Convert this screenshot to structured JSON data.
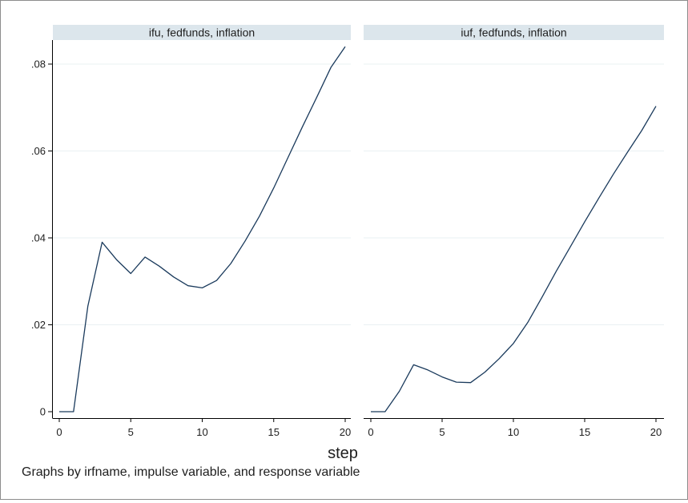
{
  "chart_data": {
    "type": "line",
    "xlabel": "step",
    "note": "Graphs by irfname, impulse variable, and response variable",
    "xlim": [
      0,
      20
    ],
    "ylim": [
      0,
      0.084
    ],
    "x_ticks": [
      0,
      5,
      10,
      15,
      20
    ],
    "x_tick_labels": [
      "0",
      "5",
      "10",
      "15",
      "20"
    ],
    "y_ticks": [
      0,
      0.02,
      0.04,
      0.06,
      0.08
    ],
    "y_tick_labels": [
      "0",
      ".02",
      ".04",
      ".06",
      ".08"
    ],
    "grid": true,
    "colors": {
      "line": "#1a3a5c",
      "strip": "#dce6ec",
      "grid": "#eaf0f3",
      "axis": "#000000"
    },
    "panels": [
      {
        "title": "ifu, fedfunds, inflation",
        "x": [
          0,
          1,
          2,
          3,
          4,
          5,
          6,
          7,
          8,
          9,
          10,
          11,
          12,
          13,
          14,
          15,
          16,
          17,
          18,
          19,
          20
        ],
        "y": [
          0,
          0,
          0.0243,
          0.039,
          0.035,
          0.0318,
          0.0356,
          0.0335,
          0.031,
          0.029,
          0.0285,
          0.0302,
          0.0341,
          0.0393,
          0.045,
          0.0515,
          0.0585,
          0.0655,
          0.0723,
          0.0792,
          0.084
        ]
      },
      {
        "title": "iuf, fedfunds, inflation",
        "x": [
          0,
          1,
          2,
          3,
          4,
          5,
          6,
          7,
          8,
          9,
          10,
          11,
          12,
          13,
          14,
          15,
          16,
          17,
          18,
          19,
          20
        ],
        "y": [
          0,
          0,
          0.0047,
          0.0108,
          0.0096,
          0.008,
          0.0068,
          0.0067,
          0.0091,
          0.0122,
          0.0157,
          0.0205,
          0.0263,
          0.0323,
          0.038,
          0.0437,
          0.0492,
          0.0546,
          0.0597,
          0.0647,
          0.0703
        ]
      }
    ]
  }
}
